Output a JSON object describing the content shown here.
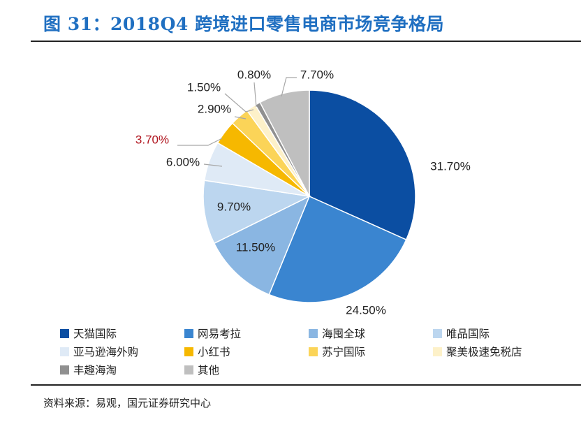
{
  "figure": {
    "title": "图 31：2018Q4 跨境进口零售电商市场竞争格局",
    "source": "资料来源：易观，国元证券研究中心"
  },
  "chart_data": {
    "type": "pie",
    "title": "",
    "start_angle_deg": 0,
    "direction": "clockwise",
    "slices": [
      {
        "label": "天猫国际",
        "value": 31.7,
        "value_label": "31.70%",
        "color": "#0b4ea2",
        "label_color": "#222222"
      },
      {
        "label": "网易考拉",
        "value": 24.5,
        "value_label": "24.50%",
        "color": "#3a85d0",
        "label_color": "#222222"
      },
      {
        "label": "海囤全球",
        "value": 11.5,
        "value_label": "11.50%",
        "color": "#8ab6e2",
        "label_color": "#222222"
      },
      {
        "label": "唯品国际",
        "value": 9.7,
        "value_label": "9.70%",
        "color": "#bcd6ef",
        "label_color": "#222222"
      },
      {
        "label": "亚马逊海外购",
        "value": 6.0,
        "value_label": "6.00%",
        "color": "#dfeaf6",
        "label_color": "#222222"
      },
      {
        "label": "小红书",
        "value": 3.7,
        "value_label": "3.70%",
        "color": "#f6b800",
        "label_color": "#b0141e"
      },
      {
        "label": "苏宁国际",
        "value": 2.9,
        "value_label": "2.90%",
        "color": "#fbd458",
        "label_color": "#222222"
      },
      {
        "label": "聚美极速免税店",
        "value": 1.5,
        "value_label": "1.50%",
        "color": "#fdf1c9",
        "label_color": "#222222"
      },
      {
        "label": "丰趣海淘",
        "value": 0.8,
        "value_label": "0.80%",
        "color": "#909090",
        "label_color": "#222222"
      },
      {
        "label": "其他",
        "value": 7.7,
        "value_label": "7.70%",
        "color": "#bfbfbf",
        "label_color": "#222222"
      }
    ],
    "legend": {
      "position": "bottom",
      "columns": 4
    }
  }
}
